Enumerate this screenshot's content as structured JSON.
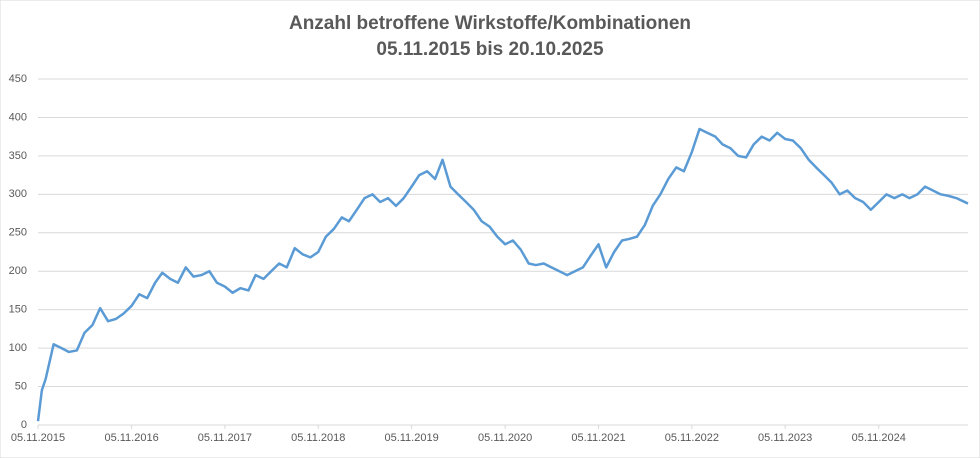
{
  "chart_data": {
    "type": "line",
    "title": "Anzahl betroffene Wirkstoffe/Kombinationen",
    "subtitle": "05.11.2015 bis 20.10.2025",
    "x": [
      "2015-11-05",
      "2015-11-20",
      "2015-12-05",
      "2016-01-05",
      "2016-02-05",
      "2016-03-05",
      "2016-04-05",
      "2016-05-05",
      "2016-06-05",
      "2016-07-05",
      "2016-08-05",
      "2016-09-05",
      "2016-10-05",
      "2016-11-05",
      "2016-12-05",
      "2017-01-05",
      "2017-02-05",
      "2017-03-05",
      "2017-04-05",
      "2017-05-05",
      "2017-06-05",
      "2017-07-05",
      "2017-08-05",
      "2017-09-05",
      "2017-10-05",
      "2017-11-05",
      "2017-12-05",
      "2018-01-05",
      "2018-02-05",
      "2018-03-05",
      "2018-04-05",
      "2018-05-05",
      "2018-06-05",
      "2018-07-05",
      "2018-08-05",
      "2018-09-05",
      "2018-10-05",
      "2018-11-05",
      "2018-12-05",
      "2019-01-05",
      "2019-02-05",
      "2019-03-05",
      "2019-04-05",
      "2019-05-05",
      "2019-06-05",
      "2019-07-05",
      "2019-08-05",
      "2019-09-05",
      "2019-10-05",
      "2019-11-05",
      "2019-12-05",
      "2020-01-05",
      "2020-02-05",
      "2020-03-05",
      "2020-04-05",
      "2020-05-05",
      "2020-06-05",
      "2020-07-05",
      "2020-08-05",
      "2020-09-05",
      "2020-10-05",
      "2020-11-05",
      "2020-12-05",
      "2021-01-05",
      "2021-02-05",
      "2021-03-05",
      "2021-04-05",
      "2021-05-05",
      "2021-06-05",
      "2021-07-05",
      "2021-08-05",
      "2021-09-05",
      "2021-10-05",
      "2021-11-05",
      "2021-12-05",
      "2022-01-05",
      "2022-02-05",
      "2022-03-05",
      "2022-04-05",
      "2022-05-05",
      "2022-06-05",
      "2022-07-05",
      "2022-08-05",
      "2022-09-05",
      "2022-10-05",
      "2022-11-05",
      "2022-12-05",
      "2023-01-05",
      "2023-02-05",
      "2023-03-05",
      "2023-04-05",
      "2023-05-05",
      "2023-06-05",
      "2023-07-05",
      "2023-08-05",
      "2023-09-05",
      "2023-10-05",
      "2023-11-05",
      "2023-12-05",
      "2024-01-05",
      "2024-02-05",
      "2024-03-05",
      "2024-04-05",
      "2024-05-05",
      "2024-06-05",
      "2024-07-05",
      "2024-08-05",
      "2024-09-05",
      "2024-10-05",
      "2024-11-05",
      "2024-12-05",
      "2025-01-05",
      "2025-02-05",
      "2025-03-05",
      "2025-04-05",
      "2025-05-05",
      "2025-06-05",
      "2025-07-05",
      "2025-08-05",
      "2025-09-05",
      "2025-10-20"
    ],
    "series": [
      {
        "color": "#5b9bd5",
        "values": [
          5,
          45,
          60,
          105,
          100,
          95,
          97,
          120,
          130,
          152,
          135,
          138,
          145,
          155,
          170,
          165,
          185,
          198,
          190,
          185,
          205,
          193,
          195,
          200,
          185,
          180,
          172,
          178,
          175,
          195,
          190,
          200,
          210,
          205,
          230,
          222,
          218,
          225,
          245,
          255,
          270,
          265,
          280,
          295,
          300,
          290,
          295,
          285,
          295,
          310,
          325,
          330,
          320,
          345,
          310,
          300,
          290,
          280,
          265,
          258,
          245,
          235,
          240,
          228,
          210,
          208,
          210,
          205,
          200,
          195,
          200,
          205,
          220,
          235,
          205,
          225,
          240,
          242,
          245,
          260,
          285,
          300,
          320,
          335,
          330,
          355,
          385,
          380,
          375,
          365,
          360,
          350,
          348,
          365,
          375,
          370,
          380,
          372,
          370,
          360,
          345,
          335,
          325,
          315,
          300,
          305,
          295,
          290,
          280,
          290,
          300,
          295,
          300,
          295,
          300,
          310,
          305,
          300,
          298,
          295,
          288
        ]
      }
    ],
    "xlim": [
      "2015-11-05",
      "2025-10-20"
    ],
    "xticks": [
      {
        "value": "2015-11-05",
        "label": "05.11.2015"
      },
      {
        "value": "2016-11-05",
        "label": "05.11.2016"
      },
      {
        "value": "2017-11-05",
        "label": "05.11.2017"
      },
      {
        "value": "2018-11-05",
        "label": "05.11.2018"
      },
      {
        "value": "2019-11-05",
        "label": "05.11.2019"
      },
      {
        "value": "2020-11-05",
        "label": "05.11.2020"
      },
      {
        "value": "2021-11-05",
        "label": "05.11.2021"
      },
      {
        "value": "2022-11-05",
        "label": "05.11.2022"
      },
      {
        "value": "2023-11-05",
        "label": "05.11.2023"
      },
      {
        "value": "2024-11-05",
        "label": "05.11.2024"
      }
    ],
    "ylim": [
      0,
      450
    ],
    "yticks": [
      0,
      50,
      100,
      150,
      200,
      250,
      300,
      350,
      400,
      450
    ],
    "grid": true
  }
}
